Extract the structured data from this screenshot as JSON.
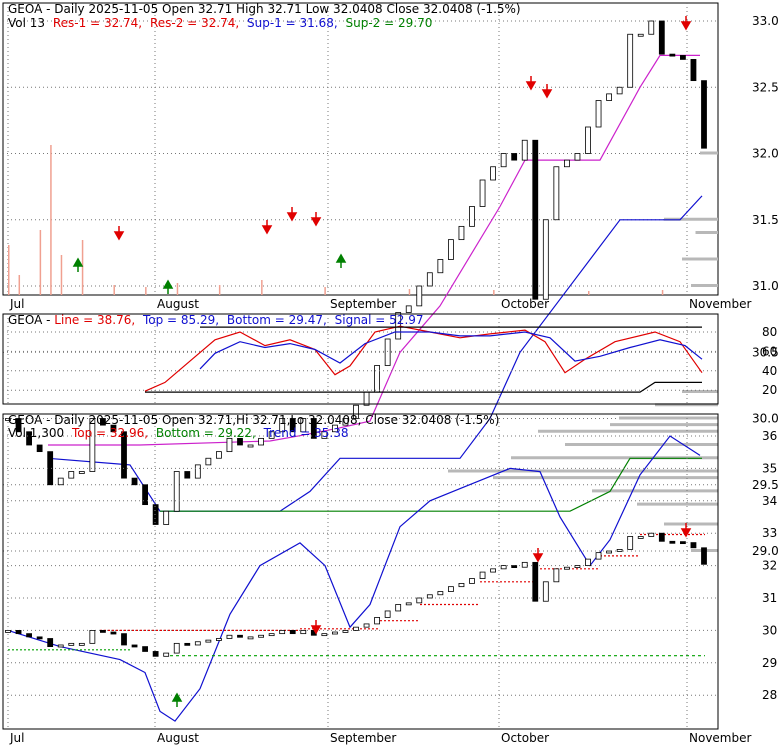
{
  "colors": {
    "black": "#000000",
    "red": "#e00000",
    "blue": "#1010d0",
    "green": "#008000",
    "magenta": "#cc22cc",
    "volume": "#f0a090",
    "profile": "#b8b8b8",
    "trend_red": "#e00000",
    "trend_green": "#00a000"
  },
  "months": [
    "Jul",
    "August",
    "September",
    "October",
    "November"
  ],
  "panel1": {
    "title": "GEOA - Daily 2025-11-05 Open 32.71  High 32.71  Low 32.0408  Close 32.0408 (-1.5%)",
    "legend_vol": "Vol 13",
    "legend_res1": "Res-1 = 32.74,",
    "legend_res2": "Res-2 = 32.74,",
    "legend_sup1": "Sup-1 = 31.68,",
    "legend_sup2": "Sup-2 = 29.70",
    "yticks": [
      "33.0",
      "32.5",
      "32.0",
      "31.5",
      "31.0",
      "30.5",
      "30.0",
      "29.5",
      "29.0"
    ]
  },
  "panel2": {
    "legend_name": "GEOA - ",
    "legend_line": "Line = 38.76,",
    "legend_top": "Top = 85.29,",
    "legend_bottom": "Bottom = 29.47,",
    "legend_signal": "Signal = 52.97",
    "yticks": [
      "80",
      "60",
      "40",
      "20"
    ]
  },
  "panel3": {
    "title": "GEOA - Daily 2025-11-05 Open 32.71,Hi 32.71,Lo 32.0408, Close 32.0408 (-1.5%)",
    "legend_vol": "Vol 1,300",
    "legend_top": "Top = 32.96,",
    "legend_bottom": "Bottom = 29.22,",
    "legend_trend": "Trend = 35.38",
    "yticks": [
      "36",
      "35",
      "34",
      "33",
      "32",
      "31",
      "30",
      "29",
      "28"
    ]
  },
  "chart_data": {
    "type": "candlestick",
    "ticker": "GEOA",
    "date": "2025-11-05",
    "ohlc_last": {
      "open": 32.71,
      "high": 32.71,
      "low": 32.0408,
      "close": 32.0408,
      "change_pct": -1.5
    },
    "closes": [
      30.0,
      29.9,
      29.8,
      29.75,
      29.5,
      29.55,
      29.6,
      29.6,
      30.0,
      29.95,
      29.9,
      29.55,
      29.5,
      29.35,
      29.2,
      29.3,
      29.6,
      29.55,
      29.65,
      29.7,
      29.75,
      29.85,
      29.8,
      29.8,
      29.85,
      29.9,
      30.0,
      29.9,
      30.0,
      29.85,
      29.9,
      29.95,
      30.0,
      30.1,
      30.2,
      30.4,
      30.6,
      30.8,
      30.85,
      31.0,
      31.1,
      31.2,
      31.35,
      31.45,
      31.6,
      31.8,
      31.9,
      32.0,
      31.95,
      32.1,
      30.9,
      31.5,
      31.9,
      31.95,
      32.0,
      32.2,
      32.4,
      32.45,
      32.5,
      32.9,
      32.9,
      33.0,
      32.75,
      32.74,
      32.71,
      32.55,
      32.04
    ],
    "resistance": {
      "res1": 32.74,
      "res2": 32.74
    },
    "support": {
      "sup1": 31.68,
      "sup2": 29.7
    },
    "oscillator": {
      "line": 38.76,
      "top": 85.29,
      "bottom": 29.47,
      "signal": 52.97
    },
    "trend_panel": {
      "top": 32.96,
      "bottom": 29.22,
      "trend": 35.38
    },
    "volume_last": 13
  }
}
